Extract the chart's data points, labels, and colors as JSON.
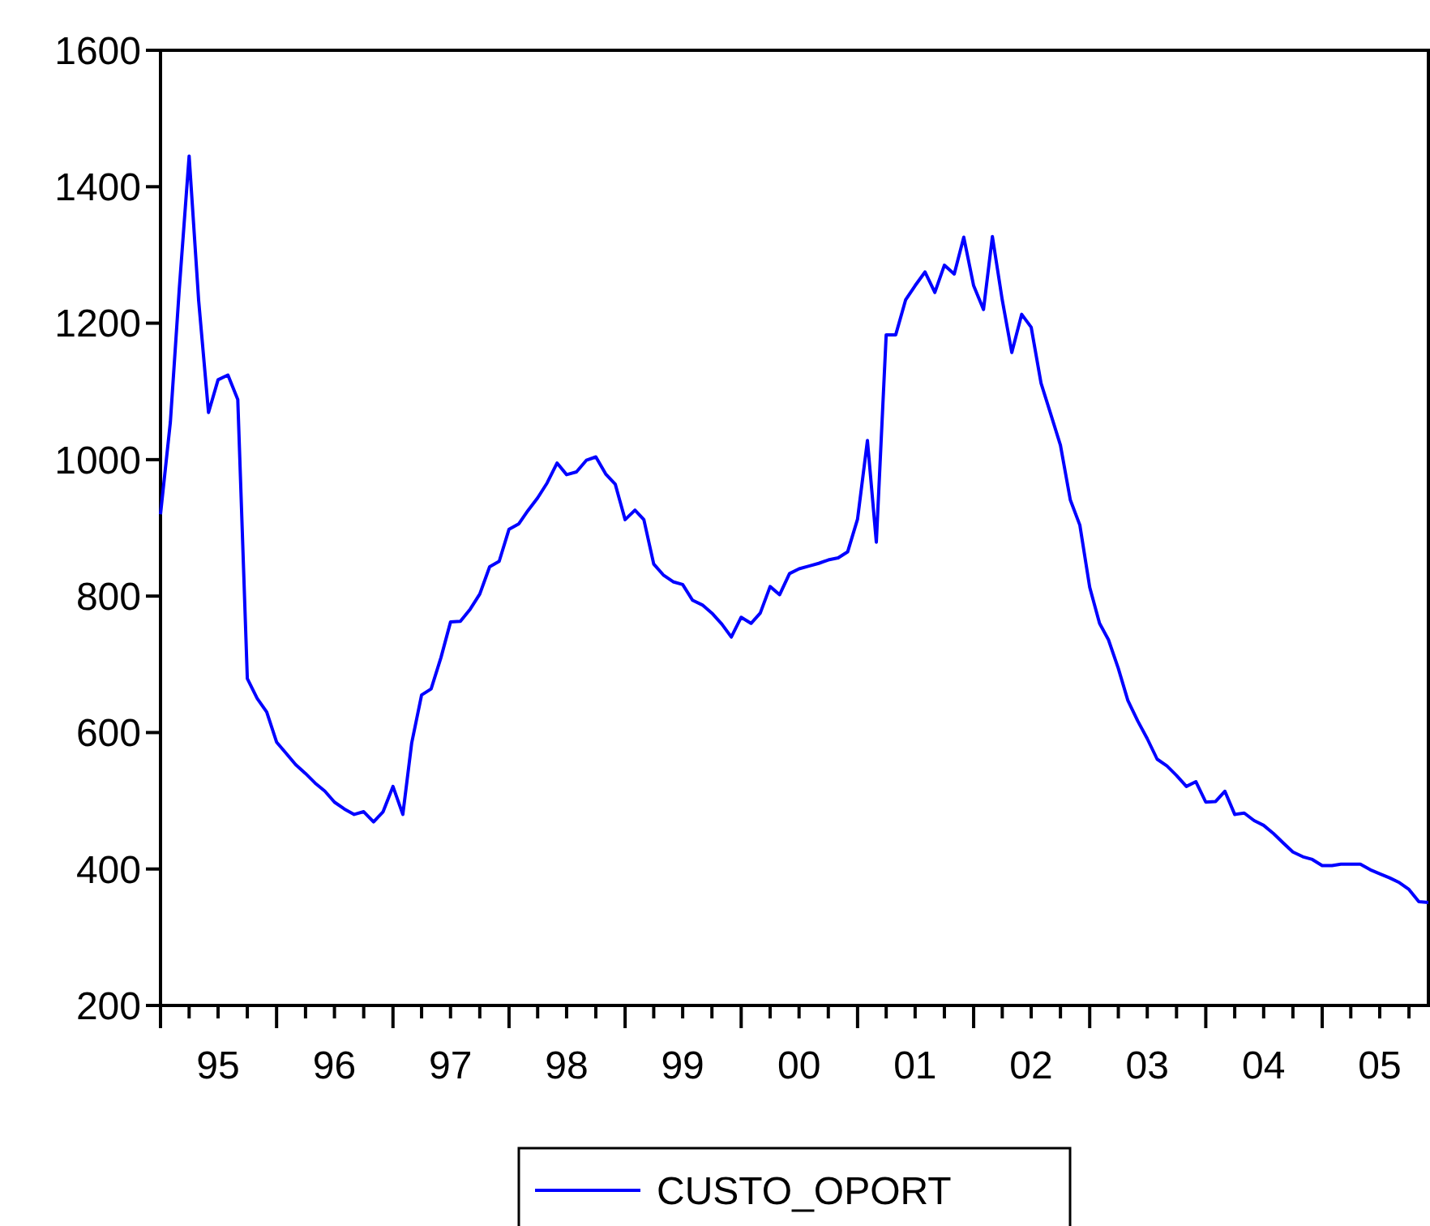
{
  "chart_data": {
    "type": "line",
    "x": [
      "1995-01",
      "1995-02",
      "1995-03",
      "1995-04",
      "1995-05",
      "1995-06",
      "1995-07",
      "1995-08",
      "1995-09",
      "1995-10",
      "1995-11",
      "1995-12",
      "1996-01",
      "1996-02",
      "1996-03",
      "1996-04",
      "1996-05",
      "1996-06",
      "1996-07",
      "1996-08",
      "1996-09",
      "1996-10",
      "1996-11",
      "1996-12",
      "1997-01",
      "1997-02",
      "1997-03",
      "1997-04",
      "1997-05",
      "1997-06",
      "1997-07",
      "1997-08",
      "1997-09",
      "1997-10",
      "1997-11",
      "1997-12",
      "1998-01",
      "1998-02",
      "1998-03",
      "1998-04",
      "1998-05",
      "1998-06",
      "1998-07",
      "1998-08",
      "1998-09",
      "1998-10",
      "1998-11",
      "1998-12",
      "1999-01",
      "1999-02",
      "1999-03",
      "1999-04",
      "1999-05",
      "1999-06",
      "1999-07",
      "1999-08",
      "1999-09",
      "1999-10",
      "1999-11",
      "1999-12",
      "2000-01",
      "2000-02",
      "2000-03",
      "2000-04",
      "2000-05",
      "2000-06",
      "2000-07",
      "2000-08",
      "2000-09",
      "2000-10",
      "2000-11",
      "2000-12",
      "2001-01",
      "2001-02",
      "2001-03",
      "2001-04",
      "2001-05",
      "2001-06",
      "2001-07",
      "2001-08",
      "2001-09",
      "2001-10",
      "2001-11",
      "2001-12",
      "2002-01",
      "2002-02",
      "2002-03",
      "2002-04",
      "2002-05",
      "2002-06",
      "2002-07",
      "2002-08",
      "2002-09",
      "2002-10",
      "2002-11",
      "2002-12",
      "2003-01",
      "2003-02",
      "2003-03",
      "2003-04",
      "2003-05",
      "2003-06",
      "2003-07",
      "2003-08",
      "2003-09",
      "2003-10",
      "2003-11",
      "2003-12",
      "2004-01",
      "2004-02",
      "2004-03",
      "2004-04",
      "2004-05",
      "2004-06",
      "2004-07",
      "2004-08",
      "2004-09",
      "2004-10",
      "2004-11",
      "2004-12",
      "2005-01",
      "2005-02",
      "2005-03",
      "2005-04",
      "2005-05",
      "2005-06",
      "2005-07",
      "2005-08",
      "2005-09",
      "2005-10",
      "2005-11",
      "2005-12"
    ],
    "series": [
      {
        "name": "CUSTO_OPORT",
        "color": "#0000ff",
        "values": [
          920,
          1055,
          1250,
          1445,
          1233,
          1069,
          1117,
          1124,
          1088,
          679,
          650,
          630,
          586,
          569,
          553,
          540,
          526,
          514,
          498,
          488,
          480,
          484,
          469,
          484,
          521,
          480,
          585,
          655,
          664,
          710,
          762,
          763,
          781,
          803,
          843,
          851,
          898,
          906,
          925,
          944,
          966,
          995,
          978,
          982,
          999,
          1004,
          979,
          964,
          912,
          926,
          912,
          847,
          831,
          821,
          817,
          794,
          787,
          775,
          759,
          740,
          769,
          760,
          775,
          814,
          802,
          833,
          840,
          844,
          848,
          853,
          856,
          865,
          913,
          1028,
          879,
          1183,
          1183,
          1234,
          1255,
          1275,
          1245,
          1285,
          1272,
          1326,
          1255,
          1220,
          1327,
          1234,
          1157,
          1213,
          1194,
          1112,
          1066,
          1021,
          941,
          904,
          813,
          760,
          736,
          694,
          647,
          617,
          591,
          561,
          551,
          537,
          521,
          528,
          498,
          499,
          514,
          480,
          482,
          471,
          464,
          452,
          438,
          425,
          418,
          414,
          405,
          405,
          407,
          407,
          407,
          399,
          393,
          387,
          380,
          370,
          352,
          351
        ]
      }
    ],
    "xlim": [
      "1995-01",
      "2005-12"
    ],
    "xticks": [
      {
        "value": "1995-07",
        "label": "95"
      },
      {
        "value": "1996-07",
        "label": "96"
      },
      {
        "value": "1997-07",
        "label": "97"
      },
      {
        "value": "1998-07",
        "label": "98"
      },
      {
        "value": "1999-07",
        "label": "99"
      },
      {
        "value": "2000-07",
        "label": "00"
      },
      {
        "value": "2001-07",
        "label": "01"
      },
      {
        "value": "2002-07",
        "label": "02"
      },
      {
        "value": "2003-07",
        "label": "03"
      },
      {
        "value": "2004-07",
        "label": "04"
      },
      {
        "value": "2005-07",
        "label": "05"
      }
    ],
    "ylim": [
      200,
      1600
    ],
    "yticks": [
      200,
      400,
      600,
      800,
      1000,
      1200,
      1400,
      1600
    ],
    "legend": "bottom",
    "grid": false,
    "marker": "none",
    "line_style": "solid"
  }
}
